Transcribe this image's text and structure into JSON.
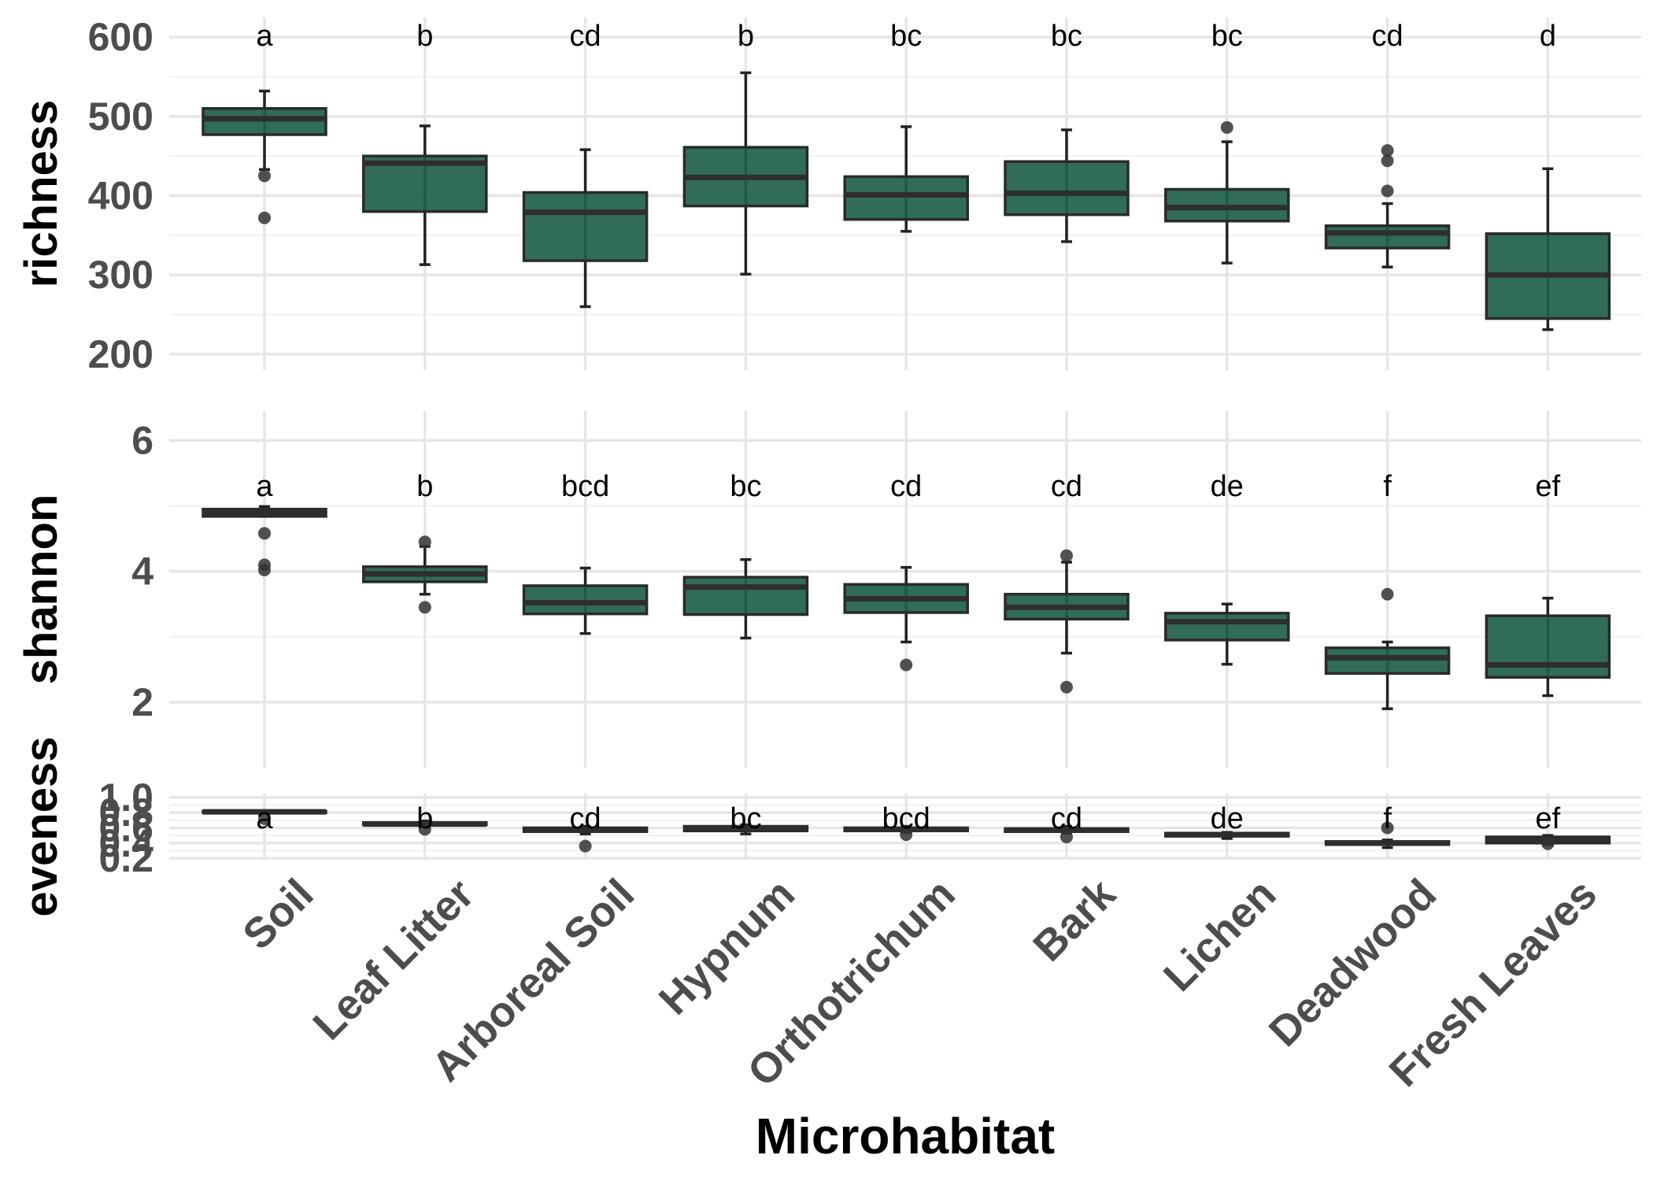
{
  "chart_data": {
    "type": "boxplot",
    "xlabel": "Microhabitat",
    "categories": [
      "Soil",
      "Leaf Litter",
      "Arboreal Soil",
      "Hypnum",
      "Orthotrichum",
      "Bark",
      "Lichen",
      "Deadwood",
      "Fresh Leaves"
    ],
    "fill_color": "#1f5f4b",
    "panels": [
      {
        "ylabel": "richness",
        "ylim": [
          180,
          625
        ],
        "yticks": [
          200,
          300,
          400,
          500,
          600
        ],
        "tick_labels": [
          "200",
          "300",
          "400",
          "500",
          "600"
        ],
        "letters": [
          "a",
          "b",
          "cd",
          "b",
          "bc",
          "bc",
          "bc",
          "cd",
          "d"
        ],
        "boxes": [
          {
            "min": 433,
            "q1": 477,
            "median": 497,
            "q3": 510,
            "max": 532,
            "outliers": [
              425,
              372
            ]
          },
          {
            "min": 313,
            "q1": 380,
            "median": 441,
            "q3": 450,
            "max": 488,
            "outliers": []
          },
          {
            "min": 260,
            "q1": 318,
            "median": 379,
            "q3": 404,
            "max": 458,
            "outliers": []
          },
          {
            "min": 301,
            "q1": 387,
            "median": 423,
            "q3": 461,
            "max": 555,
            "outliers": []
          },
          {
            "min": 355,
            "q1": 370,
            "median": 401,
            "q3": 424,
            "max": 487,
            "outliers": []
          },
          {
            "min": 342,
            "q1": 376,
            "median": 403,
            "q3": 443,
            "max": 483,
            "outliers": []
          },
          {
            "min": 315,
            "q1": 368,
            "median": 385,
            "q3": 408,
            "max": 468,
            "outliers": [
              486
            ]
          },
          {
            "min": 310,
            "q1": 334,
            "median": 353,
            "q3": 362,
            "max": 390,
            "outliers": [
              457,
              444,
              406
            ]
          },
          {
            "min": 231,
            "q1": 245,
            "median": 300,
            "q3": 352,
            "max": 434,
            "outliers": []
          }
        ]
      },
      {
        "ylabel": "shannon",
        "ylim": [
          1.0,
          6.45
        ],
        "yticks": [
          2,
          4,
          6
        ],
        "tick_labels": [
          "2",
          "4",
          "6"
        ],
        "letters": [
          "a",
          "b",
          "bcd",
          "bc",
          "cd",
          "cd",
          "de",
          "f",
          "ef"
        ],
        "boxes": [
          {
            "min": 4.84,
            "q1": 4.84,
            "median": 4.9,
            "q3": 4.95,
            "max": 4.99,
            "outliers": [
              4.58,
              4.1,
              4.02
            ]
          },
          {
            "min": 3.65,
            "q1": 3.84,
            "median": 3.96,
            "q3": 4.07,
            "max": 4.38,
            "outliers": [
              4.45,
              3.45
            ]
          },
          {
            "min": 3.05,
            "q1": 3.35,
            "median": 3.52,
            "q3": 3.78,
            "max": 4.05,
            "outliers": []
          },
          {
            "min": 2.98,
            "q1": 3.34,
            "median": 3.76,
            "q3": 3.91,
            "max": 4.18,
            "outliers": []
          },
          {
            "min": 2.92,
            "q1": 3.37,
            "median": 3.58,
            "q3": 3.8,
            "max": 4.06,
            "outliers": [
              2.57
            ]
          },
          {
            "min": 2.75,
            "q1": 3.27,
            "median": 3.45,
            "q3": 3.65,
            "max": 4.14,
            "outliers": [
              4.24,
              2.23
            ]
          },
          {
            "min": 2.58,
            "q1": 2.95,
            "median": 3.23,
            "q3": 3.36,
            "max": 3.5,
            "outliers": []
          },
          {
            "min": 1.9,
            "q1": 2.44,
            "median": 2.68,
            "q3": 2.83,
            "max": 2.92,
            "outliers": [
              3.65
            ]
          },
          {
            "min": 2.1,
            "q1": 2.38,
            "median": 2.57,
            "q3": 3.32,
            "max": 3.59,
            "outliers": []
          }
        ]
      },
      {
        "ylabel": "eveness",
        "ylim": [
          0.18,
          1.05
        ],
        "yticks": [
          0.2,
          0.4,
          0.6,
          0.8,
          1.0
        ],
        "tick_labels": [
          "0.2",
          "0.4",
          "0.6",
          "0.8",
          "1.0"
        ],
        "letters": [
          "a",
          "b",
          "cd",
          "bc",
          "bcd",
          "cd",
          "de",
          "f",
          "ef"
        ],
        "boxes": [
          {
            "min": 0.8,
            "q1": 0.8,
            "median": 0.81,
            "q3": 0.82,
            "max": 0.82,
            "outliers": [
              0.72
            ]
          },
          {
            "min": 0.62,
            "q1": 0.64,
            "median": 0.65,
            "q3": 0.67,
            "max": 0.69,
            "outliers": [
              0.58
            ]
          },
          {
            "min": 0.52,
            "q1": 0.55,
            "median": 0.57,
            "q3": 0.6,
            "max": 0.62,
            "outliers": [
              0.36
            ]
          },
          {
            "min": 0.52,
            "q1": 0.56,
            "median": 0.6,
            "q3": 0.62,
            "max": 0.64,
            "outliers": []
          },
          {
            "min": 0.54,
            "q1": 0.56,
            "median": 0.58,
            "q3": 0.6,
            "max": 0.62,
            "outliers": [
              0.51
            ]
          },
          {
            "min": 0.53,
            "q1": 0.55,
            "median": 0.57,
            "q3": 0.59,
            "max": 0.62,
            "outliers": [
              0.48
            ]
          },
          {
            "min": 0.46,
            "q1": 0.49,
            "median": 0.51,
            "q3": 0.53,
            "max": 0.54,
            "outliers": []
          },
          {
            "min": 0.34,
            "q1": 0.38,
            "median": 0.4,
            "q3": 0.42,
            "max": 0.44,
            "outliers": [
              0.6
            ]
          },
          {
            "min": 0.38,
            "q1": 0.4,
            "median": 0.44,
            "q3": 0.48,
            "max": 0.5,
            "outliers": [
              0.39
            ]
          }
        ]
      }
    ]
  }
}
